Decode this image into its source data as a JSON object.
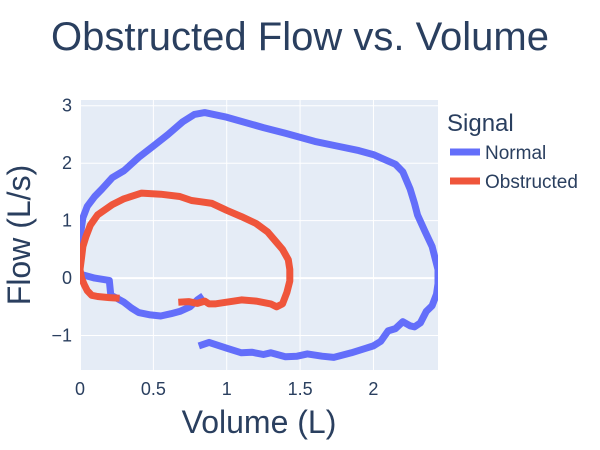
{
  "chart_data": {
    "type": "line",
    "title": "Obstructed Flow vs. Volume",
    "xlabel": "Volume (L)",
    "ylabel": "Flow (L/s)",
    "xlim": [
      0,
      2.44
    ],
    "ylim": [
      -1.6,
      3.1
    ],
    "xticks": [
      {
        "v": 0,
        "label": "0"
      },
      {
        "v": 0.5,
        "label": "0.5"
      },
      {
        "v": 1,
        "label": "1"
      },
      {
        "v": 1.5,
        "label": "1.5"
      },
      {
        "v": 2,
        "label": "2"
      }
    ],
    "yticks": [
      {
        "v": -1,
        "label": "−1"
      },
      {
        "v": 0,
        "label": "0"
      },
      {
        "v": 1,
        "label": "1"
      },
      {
        "v": 2,
        "label": "2"
      },
      {
        "v": 3,
        "label": "3"
      }
    ],
    "grid": true,
    "legend_title": "Signal",
    "legend_position": "right",
    "series": [
      {
        "name": "Normal",
        "color": "#636efa",
        "points": [
          [
            0.81,
            -1.18
          ],
          [
            0.88,
            -1.12
          ],
          [
            1.0,
            -1.22
          ],
          [
            1.1,
            -1.3
          ],
          [
            1.17,
            -1.29
          ],
          [
            1.25,
            -1.33
          ],
          [
            1.3,
            -1.3
          ],
          [
            1.4,
            -1.37
          ],
          [
            1.48,
            -1.36
          ],
          [
            1.55,
            -1.32
          ],
          [
            1.65,
            -1.36
          ],
          [
            1.73,
            -1.38
          ],
          [
            1.85,
            -1.3
          ],
          [
            1.95,
            -1.22
          ],
          [
            2.0,
            -1.18
          ],
          [
            2.05,
            -1.1
          ],
          [
            2.1,
            -0.92
          ],
          [
            2.15,
            -0.88
          ],
          [
            2.2,
            -0.76
          ],
          [
            2.25,
            -0.83
          ],
          [
            2.28,
            -0.85
          ],
          [
            2.32,
            -0.78
          ],
          [
            2.36,
            -0.58
          ],
          [
            2.4,
            -0.48
          ],
          [
            2.43,
            -0.28
          ],
          [
            2.44,
            -0.1
          ],
          [
            2.44,
            0.15
          ],
          [
            2.4,
            0.55
          ],
          [
            2.35,
            0.82
          ],
          [
            2.3,
            1.1
          ],
          [
            2.28,
            1.3
          ],
          [
            2.25,
            1.55
          ],
          [
            2.2,
            1.85
          ],
          [
            2.15,
            1.98
          ],
          [
            2.0,
            2.15
          ],
          [
            1.9,
            2.22
          ],
          [
            1.75,
            2.3
          ],
          [
            1.6,
            2.38
          ],
          [
            1.4,
            2.52
          ],
          [
            1.25,
            2.62
          ],
          [
            1.0,
            2.8
          ],
          [
            0.85,
            2.88
          ],
          [
            0.78,
            2.85
          ],
          [
            0.7,
            2.72
          ],
          [
            0.6,
            2.5
          ],
          [
            0.5,
            2.3
          ],
          [
            0.4,
            2.1
          ],
          [
            0.3,
            1.87
          ],
          [
            0.22,
            1.75
          ],
          [
            0.15,
            1.55
          ],
          [
            0.1,
            1.42
          ],
          [
            0.05,
            1.25
          ],
          [
            0.02,
            1.05
          ],
          [
            0.0,
            0.7
          ],
          [
            0.0,
            0.3
          ],
          [
            0.0,
            0.07
          ],
          [
            0.1,
            0.0
          ],
          [
            0.2,
            -0.04
          ],
          [
            0.21,
            -0.3
          ],
          [
            0.25,
            -0.35
          ],
          [
            0.3,
            -0.42
          ],
          [
            0.35,
            -0.52
          ],
          [
            0.4,
            -0.6
          ],
          [
            0.48,
            -0.64
          ],
          [
            0.55,
            -0.66
          ],
          [
            0.62,
            -0.62
          ],
          [
            0.68,
            -0.58
          ],
          [
            0.75,
            -0.5
          ],
          [
            0.8,
            -0.38
          ],
          [
            0.84,
            -0.31
          ]
        ]
      },
      {
        "name": "Obstructed",
        "color": "#ef553b",
        "points": [
          [
            0.27,
            -0.35
          ],
          [
            0.2,
            -0.34
          ],
          [
            0.12,
            -0.32
          ],
          [
            0.08,
            -0.3
          ],
          [
            0.05,
            -0.22
          ],
          [
            0.03,
            -0.12
          ],
          [
            0.01,
            0.0
          ],
          [
            0.0,
            0.15
          ],
          [
            0.01,
            0.35
          ],
          [
            0.02,
            0.55
          ],
          [
            0.04,
            0.72
          ],
          [
            0.07,
            0.92
          ],
          [
            0.12,
            1.1
          ],
          [
            0.22,
            1.28
          ],
          [
            0.3,
            1.38
          ],
          [
            0.42,
            1.48
          ],
          [
            0.55,
            1.46
          ],
          [
            0.68,
            1.42
          ],
          [
            0.76,
            1.35
          ],
          [
            0.82,
            1.33
          ],
          [
            0.9,
            1.3
          ],
          [
            1.0,
            1.18
          ],
          [
            1.1,
            1.07
          ],
          [
            1.2,
            0.95
          ],
          [
            1.28,
            0.8
          ],
          [
            1.33,
            0.65
          ],
          [
            1.38,
            0.5
          ],
          [
            1.42,
            0.32
          ],
          [
            1.43,
            0.15
          ],
          [
            1.43,
            -0.05
          ],
          [
            1.41,
            -0.25
          ],
          [
            1.38,
            -0.45
          ],
          [
            1.34,
            -0.5
          ],
          [
            1.3,
            -0.45
          ],
          [
            1.2,
            -0.4
          ],
          [
            1.1,
            -0.38
          ],
          [
            1.05,
            -0.4
          ],
          [
            0.97,
            -0.43
          ],
          [
            0.92,
            -0.45
          ],
          [
            0.88,
            -0.45
          ],
          [
            0.85,
            -0.4
          ],
          [
            0.8,
            -0.44
          ],
          [
            0.74,
            -0.41
          ],
          [
            0.67,
            -0.42
          ]
        ]
      }
    ]
  }
}
